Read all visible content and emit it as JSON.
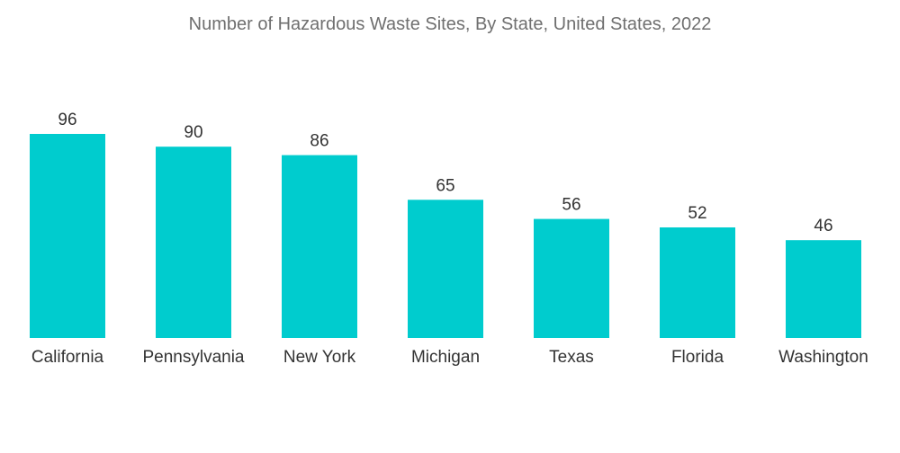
{
  "chart_data": {
    "type": "bar",
    "title": "Number of Hazardous Waste Sites, By State, United States, 2022",
    "categories": [
      "California",
      "Pennsylvania",
      "New York",
      "Michigan",
      "Texas",
      "Florida",
      "Washington"
    ],
    "values": [
      96,
      90,
      86,
      65,
      56,
      52,
      46
    ],
    "ylim": [
      0,
      96
    ],
    "grid": false,
    "legend": "none",
    "bar_color": "#00ccce"
  }
}
